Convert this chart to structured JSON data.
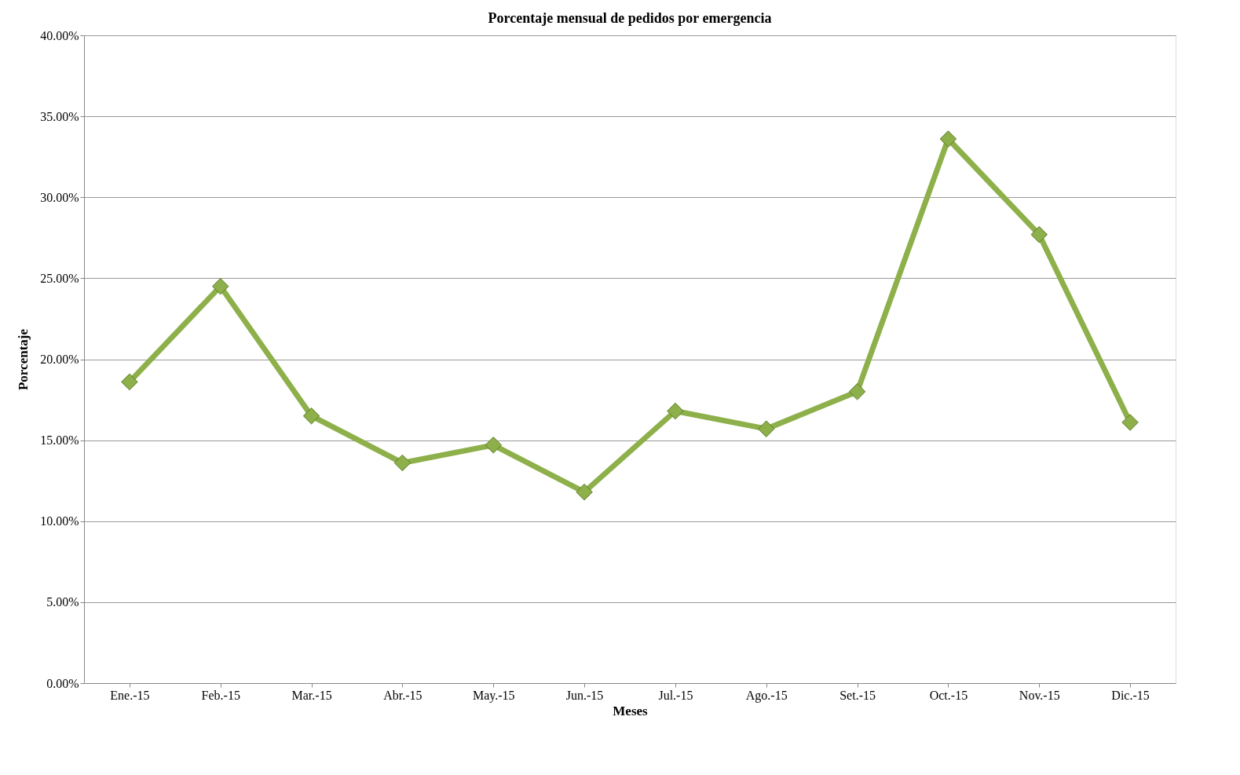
{
  "chart_data": {
    "type": "line",
    "title": "Porcentaje mensual de pedidos por emergencia",
    "xlabel": "Meses",
    "ylabel": "Porcentaje",
    "categories": [
      "Ene.-15",
      "Feb.-15",
      "Mar.-15",
      "Abr.-15",
      "May.-15",
      "Jun.-15",
      "Jul.-15",
      "Ago.-15",
      "Set.-15",
      "Oct.-15",
      "Nov.-15",
      "Dic.-15"
    ],
    "series": [
      {
        "color": "#8db04a",
        "values": [
          18.6,
          24.5,
          16.5,
          13.6,
          14.7,
          11.8,
          16.8,
          15.7,
          18.0,
          33.6,
          27.7,
          16.1
        ]
      }
    ],
    "ylim": [
      0,
      40
    ],
    "yticks": [
      {
        "value": 0,
        "label": "0.00%"
      },
      {
        "value": 5,
        "label": "5.00%"
      },
      {
        "value": 10,
        "label": "10.00%"
      },
      {
        "value": 15,
        "label": "15.00%"
      },
      {
        "value": 20,
        "label": "20.00%"
      },
      {
        "value": 25,
        "label": "25.00%"
      },
      {
        "value": 30,
        "label": "30.00%"
      },
      {
        "value": 35,
        "label": "35.00%"
      },
      {
        "value": 40,
        "label": "40.00%"
      }
    ],
    "grid": "y",
    "marker": "diamond",
    "line_style": "solid"
  }
}
